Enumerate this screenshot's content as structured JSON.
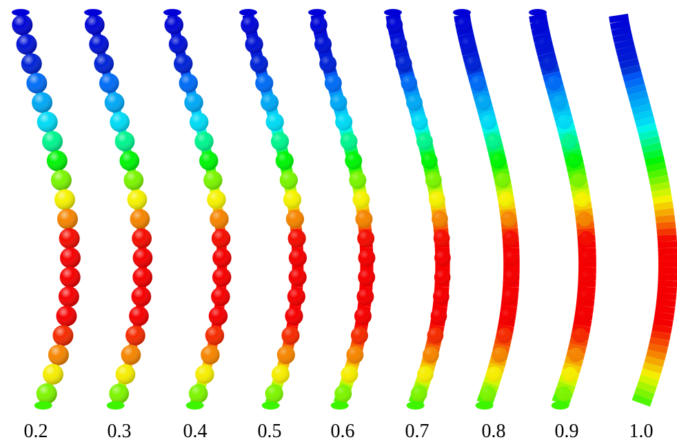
{
  "panels": {
    "labels": [
      "0.2",
      "0.3",
      "0.4",
      "0.5",
      "0.6",
      "0.7",
      "0.8",
      "0.9",
      "1.0"
    ]
  }
}
